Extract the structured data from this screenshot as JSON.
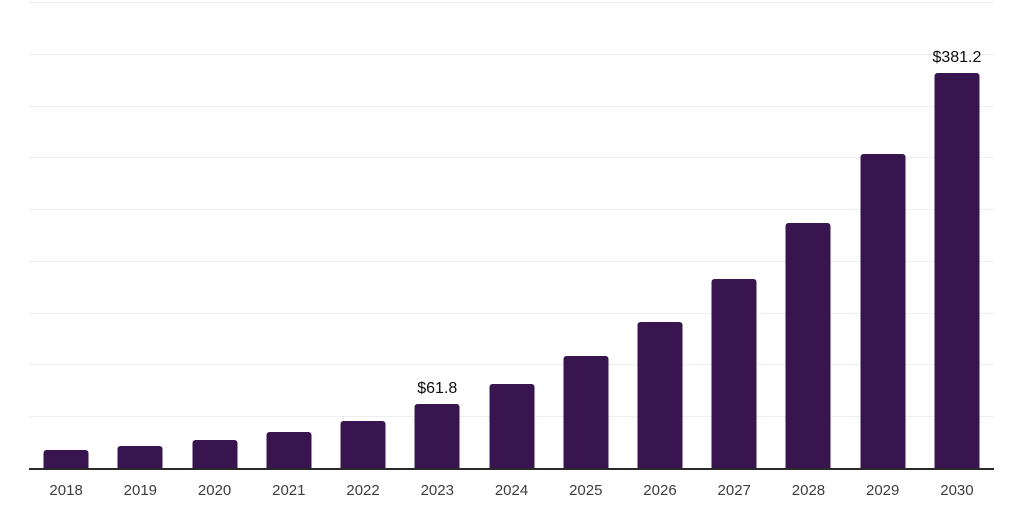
{
  "chart_data": {
    "type": "bar",
    "title": "",
    "xlabel": "",
    "ylabel": "",
    "categories": [
      "2018",
      "2019",
      "2020",
      "2021",
      "2022",
      "2023",
      "2024",
      "2025",
      "2026",
      "2027",
      "2028",
      "2029",
      "2030"
    ],
    "values": [
      17.5,
      21.5,
      27,
      35,
      45.5,
      61.8,
      81.5,
      108,
      141,
      183,
      237,
      303.5,
      381.2
    ],
    "point_labels": {
      "2023": "$61.8",
      "2030": "$381.2"
    },
    "ylim": [
      0,
      450
    ],
    "gridline_step": 50,
    "grid": "horizontal-only",
    "legend": "none",
    "y_tick_labels": "none",
    "colors": {
      "bar": "#38154f",
      "gridline": "#eeeeee",
      "axis_line": "#2a2a2a",
      "tick_label": "#3d3d3d",
      "value_label": "#0d0d0d",
      "background": "#ffffff"
    }
  }
}
